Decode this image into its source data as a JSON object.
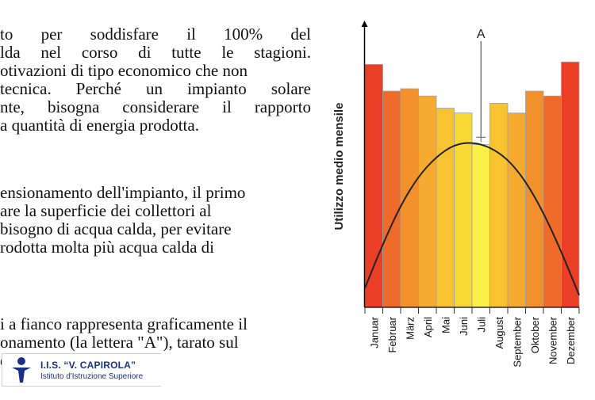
{
  "text": {
    "para1": [
      {
        "words": [
          "to",
          "per",
          "soddisfare",
          "il",
          "100%",
          "del"
        ],
        "justify": true
      },
      {
        "words": [
          "lda",
          "nel",
          "corso",
          "di",
          "tutte",
          "le",
          "stagioni."
        ],
        "justify": true
      },
      {
        "text": "otivazioni di tipo economico che non"
      },
      {
        "words": [
          "tecnica.",
          "Perché",
          "un",
          "impianto",
          "solare"
        ],
        "justify": true
      },
      {
        "words": [
          "nte,",
          "bisogna",
          "considerare",
          "il",
          "rapporto"
        ],
        "justify": true
      },
      {
        "text": "a quantità di energia prodotta."
      }
    ],
    "para2": [
      {
        "text": "ensionamento dell'impianto, il primo"
      },
      {
        "text": "are la superficie dei collettori al"
      },
      {
        "text": "bisogno di acqua calda, per evitare"
      },
      {
        "text": "rodotta molta più acqua calda di"
      }
    ],
    "para3": [
      {
        "text": "i a fianco rappresenta graficamente il"
      },
      {
        "text": "onamento (la lettera \"A\"), tarato sul"
      },
      {
        "text": "di"
      }
    ]
  },
  "logo": {
    "title": "I.I.S. “V. CAPIROLA”",
    "subtitle": "Istituto d'Istruzione Superiore",
    "colors": {
      "primary": "#1b2f87"
    }
  },
  "chart_data": {
    "type": "bar",
    "ylabel": "Utilizzo medio mensile",
    "marker_label": "A",
    "categories": [
      "Januar",
      "Februar",
      "März",
      "April",
      "Mai",
      "Juni",
      "Juli",
      "August",
      "September",
      "Oktober",
      "November",
      "Dezember"
    ],
    "values": [
      100,
      89,
      90,
      87,
      82,
      80,
      67,
      84,
      80,
      89,
      87,
      101
    ],
    "curve": [
      8,
      26,
      42,
      54,
      62,
      67,
      68,
      66,
      61,
      52,
      39,
      23,
      5
    ],
    "marker_level": 70,
    "ylim": [
      0,
      120
    ],
    "bar_colors": [
      "#ea3f26",
      "#ef6b2a",
      "#f2902c",
      "#f5ab2f",
      "#f7c331",
      "#f8d834",
      "#fbef4a",
      "#f7c331",
      "#f5ab2f",
      "#f2902c",
      "#ef6b2a",
      "#ea3f26"
    ],
    "grid": false
  }
}
